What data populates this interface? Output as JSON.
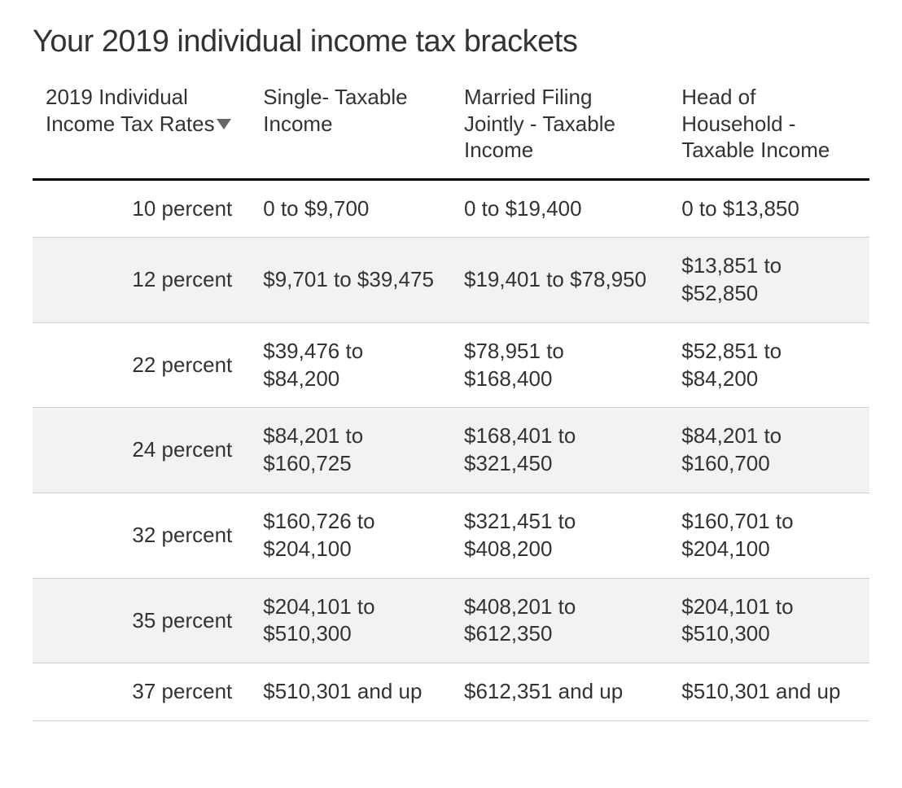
{
  "title": "Your 2019 individual income tax brackets",
  "table": {
    "columns": [
      {
        "label": "2019 Individual Income Tax Rates",
        "sorted_desc": true,
        "align": "right"
      },
      {
        "label": "Single- Taxable Income",
        "align": "left"
      },
      {
        "label": "Married Filing Jointly - Taxable Income",
        "align": "left"
      },
      {
        "label": "Head of Household - Taxable Income",
        "align": "left"
      }
    ],
    "rows": [
      {
        "rate": "10 percent",
        "single": "0 to $9,700",
        "mfj": "0 to $19,400",
        "hoh": "0 to $13,850"
      },
      {
        "rate": "12 percent",
        "single": "$9,701 to $39,475",
        "mfj": "$19,401 to $78,950",
        "hoh": "$13,851 to $52,850"
      },
      {
        "rate": "22 percent",
        "single": "$39,476 to $84,200",
        "mfj": "$78,951 to $168,400",
        "hoh": "$52,851 to $84,200"
      },
      {
        "rate": "24 percent",
        "single": "$84,201 to $160,725",
        "mfj": "$168,401 to $321,450",
        "hoh": "$84,201 to $160,700"
      },
      {
        "rate": "32 percent",
        "single": "$160,726 to $204,100",
        "mfj": "$321,451 to $408,200",
        "hoh": "$160,701 to $204,100"
      },
      {
        "rate": "35 percent",
        "single": "$204,101 to $510,300",
        "mfj": "$408,201 to $612,350",
        "hoh": "$204,101 to $510,300"
      },
      {
        "rate": "37 percent",
        "single": "$510,301 and up",
        "mfj": "$612,351 and up",
        "hoh": "$510,301 and up"
      }
    ],
    "styling": {
      "type": "table",
      "header_border_color": "#000000",
      "row_border_color": "#d0d0d0",
      "alt_row_background": "#f2f2f2",
      "background_color": "#ffffff",
      "text_color": "#333333",
      "sort_icon_color": "#666666",
      "title_fontsize": 38,
      "header_fontsize": 26,
      "cell_fontsize": 26,
      "column_widths_pct": [
        26,
        24,
        26,
        24
      ]
    }
  }
}
